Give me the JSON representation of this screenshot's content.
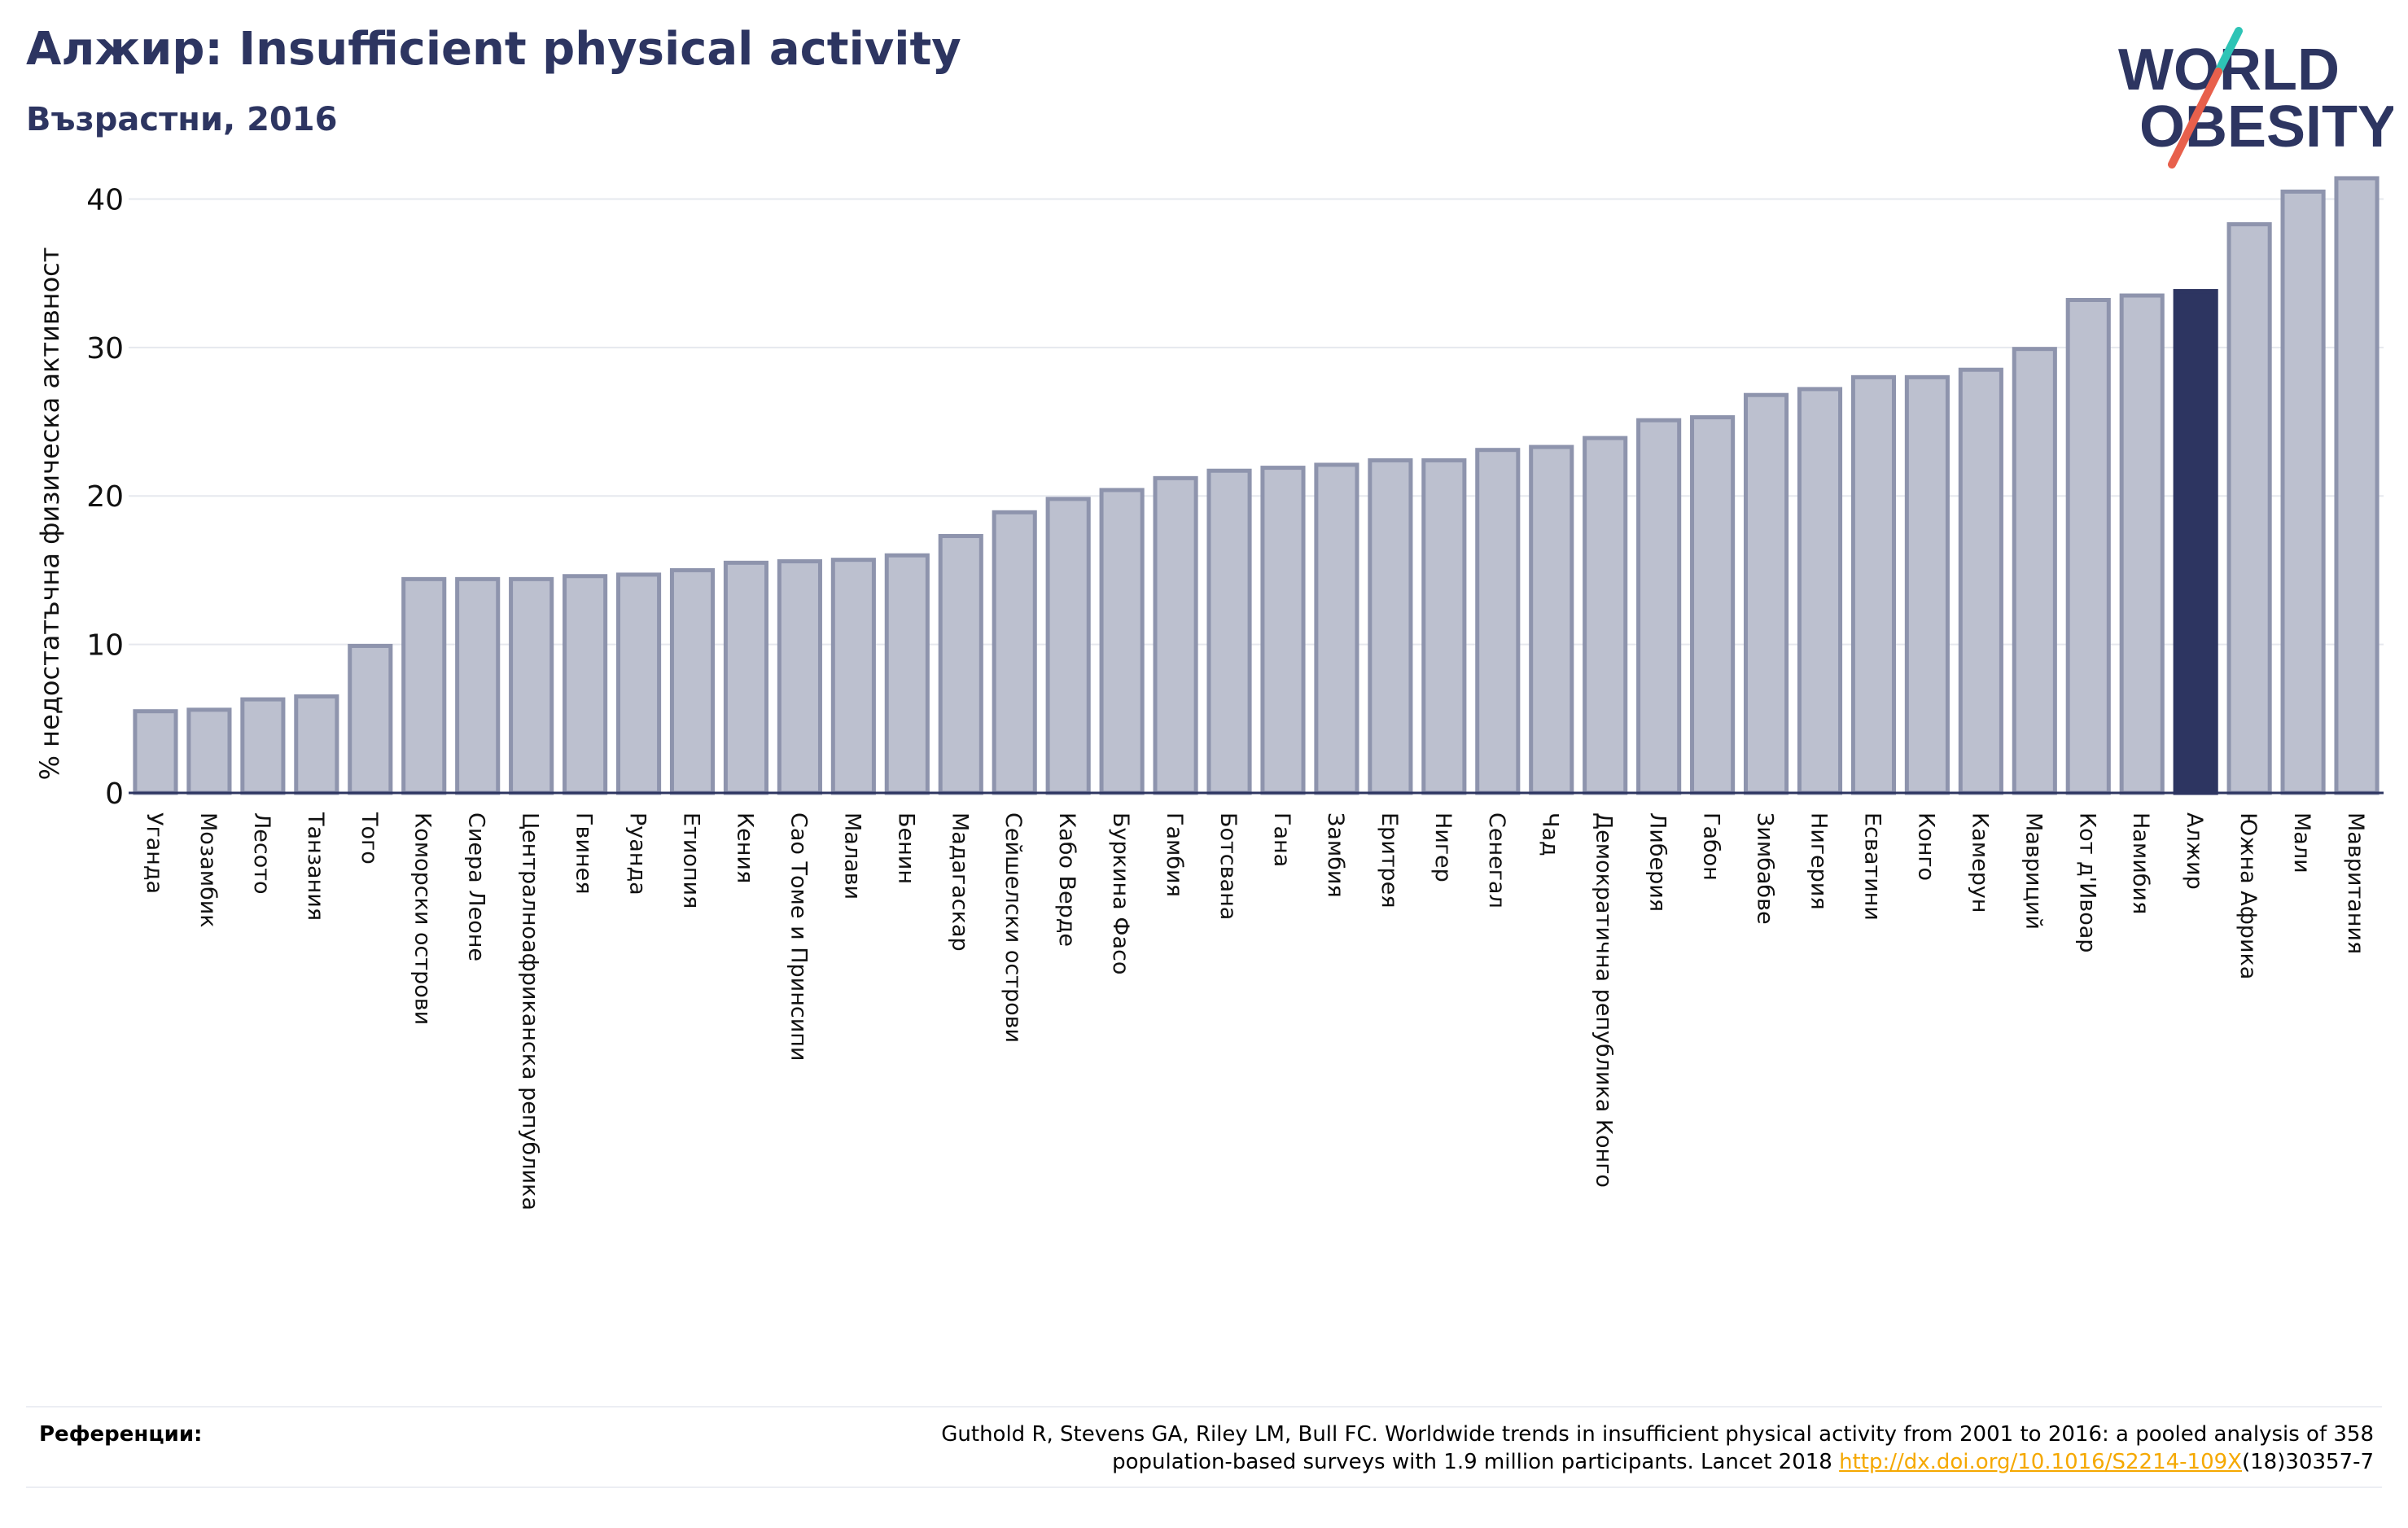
{
  "header": {
    "title": "Алжир: Insufficient physical activity",
    "subtitle": "Възрастни, 2016"
  },
  "logo": {
    "line1": "WORLD",
    "line2": "OBESITY",
    "colors": {
      "text": "#2d3561",
      "slash_top": "#2ec4b6",
      "slash_bottom": "#e8604c"
    }
  },
  "colors": {
    "bar_fill": "#bcc0cf",
    "bar_stroke": "#8e94ad",
    "highlight": "#2d3561",
    "grid": "#e6e8ee",
    "axis": "#2d3561"
  },
  "chart_data": {
    "type": "bar",
    "ylabel": "% недостатъчна физическа активност",
    "ylim": [
      0,
      42
    ],
    "yticks": [
      0,
      10,
      20,
      30,
      40
    ],
    "grid": true,
    "highlight": "Алжир",
    "categories": [
      "Уганда",
      "Мозамбик",
      "Лесото",
      "Танзания",
      "Того",
      "Коморски острови",
      "Сиера Леоне",
      "Централноафриканска република",
      "Гвинея",
      "Руанда",
      "Етиопия",
      "Кения",
      "Сао Томе и Принсипи",
      "Малави",
      "Бенин",
      "Мадагаскар",
      "Сейшелски острови",
      "Кабо Верде",
      "Буркина Фасо",
      "Гамбия",
      "Ботсвана",
      "Гана",
      "Замбия",
      "Еритрея",
      "Нигер",
      "Сенегал",
      "Чад",
      "Демократична република Конго",
      "Либерия",
      "Габон",
      "Зимбабве",
      "Нигерия",
      "Есватини",
      "Конго",
      "Камерун",
      "Мавриций",
      "Кот д'Ивоар",
      "Намибия",
      "Алжир",
      "Южна Африка",
      "Мали",
      "Мавритания"
    ],
    "values": [
      5.5,
      5.6,
      6.3,
      6.5,
      9.9,
      14.4,
      14.4,
      14.4,
      14.6,
      14.7,
      15.0,
      15.5,
      15.6,
      15.7,
      16.0,
      17.3,
      18.9,
      19.8,
      20.4,
      21.2,
      21.7,
      21.9,
      22.1,
      22.4,
      22.4,
      23.1,
      23.3,
      23.9,
      25.1,
      25.3,
      26.8,
      27.2,
      28.0,
      28.0,
      28.5,
      29.9,
      33.2,
      33.5,
      33.8,
      38.3,
      40.5,
      41.4
    ]
  },
  "references": {
    "label": "Референции:",
    "line1": "Guthold R, Stevens GA, Riley LM, Bull FC. Worldwide trends in insufficient physical activity from 2001 to 2016: a pooled analysis of 358",
    "line2_prefix": "population-based surveys with 1.9 million participants. Lancet 2018 ",
    "link": "http://dx.doi.org/10.1016/S2214-109X",
    "line2_suffix": "(18)30357-7"
  }
}
